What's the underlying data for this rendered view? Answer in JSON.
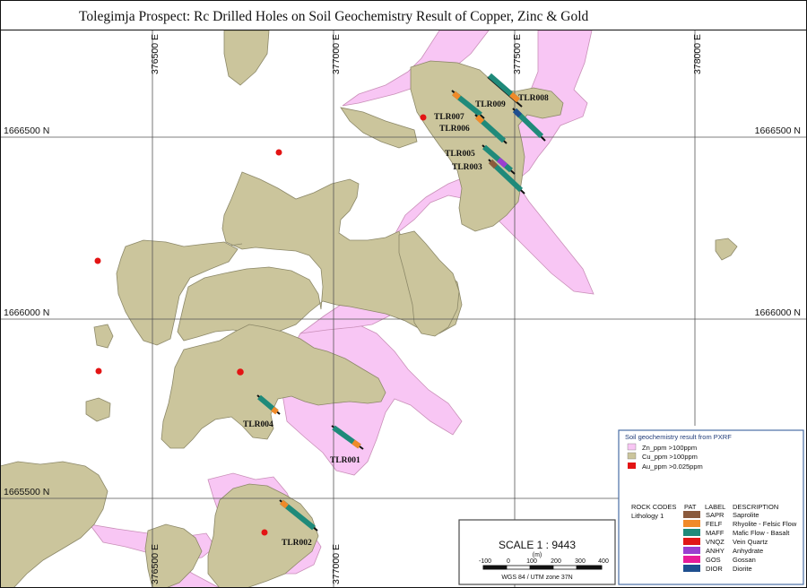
{
  "title": "Tolegimja Prospect: Rc Drilled Holes on Soil Geochemistry Result of Copper, Zinc & Gold",
  "grid": {
    "eastings": [
      "376500 E",
      "377000 E",
      "377500 E",
      "378000 E"
    ],
    "northings": [
      "1666500 N",
      "1666000 N",
      "1665500 N"
    ]
  },
  "drill_holes": [
    {
      "id": "TLR001",
      "label": "TLR001"
    },
    {
      "id": "TLR002",
      "label": "TLR002"
    },
    {
      "id": "TLR003",
      "label": "TLR003"
    },
    {
      "id": "TLR004",
      "label": "TLR004"
    },
    {
      "id": "TLR005",
      "label": "TLR005"
    },
    {
      "id": "TLR006",
      "label": "TLR006"
    },
    {
      "id": "TLR007",
      "label": "TLR007"
    },
    {
      "id": "TLR008",
      "label": "TLR008"
    },
    {
      "id": "TLR009",
      "label": "TLR009"
    }
  ],
  "legend": {
    "title": "Soil geochemistry result from PXRF",
    "items": [
      {
        "label": "Zn_ppm >100ppm",
        "color": "#f8c6f4"
      },
      {
        "label": "Cu_ppm >100ppm",
        "color": "#cbc59c"
      },
      {
        "label": "Au_ppm >0.025ppm",
        "color": "#e31414"
      }
    ],
    "rock_codes": {
      "heading": "ROCK CODES",
      "col_pat": "PAT",
      "col_label": "LABEL",
      "col_desc": "DESCRIPTION",
      "group": "Lithology 1",
      "rows": [
        {
          "label": "SAPR",
          "desc": "Saprolite",
          "color": "#8b5a3c"
        },
        {
          "label": "FELF",
          "desc": "Rhyolite - Felsic Flow",
          "color": "#f08a2a"
        },
        {
          "label": "MAFF",
          "desc": "Mafic Flow - Basalt",
          "color": "#1f8a7a"
        },
        {
          "label": "VNQZ",
          "desc": "Vein Quartz",
          "color": "#e01818"
        },
        {
          "label": "ANHY",
          "desc": "Anhydrate",
          "color": "#9a3fd0"
        },
        {
          "label": "GOS",
          "desc": "Gossan",
          "color": "#e81c9a"
        },
        {
          "label": "DIOR",
          "desc": "Diorite",
          "color": "#1f4f8f"
        }
      ]
    }
  },
  "scale": {
    "label": "SCALE  1 : 9443",
    "unit": "(m)",
    "ticks": [
      "-100",
      "0",
      "100",
      "200",
      "300",
      "400"
    ],
    "datum": "WGS 84 / UTM zone 37N"
  }
}
